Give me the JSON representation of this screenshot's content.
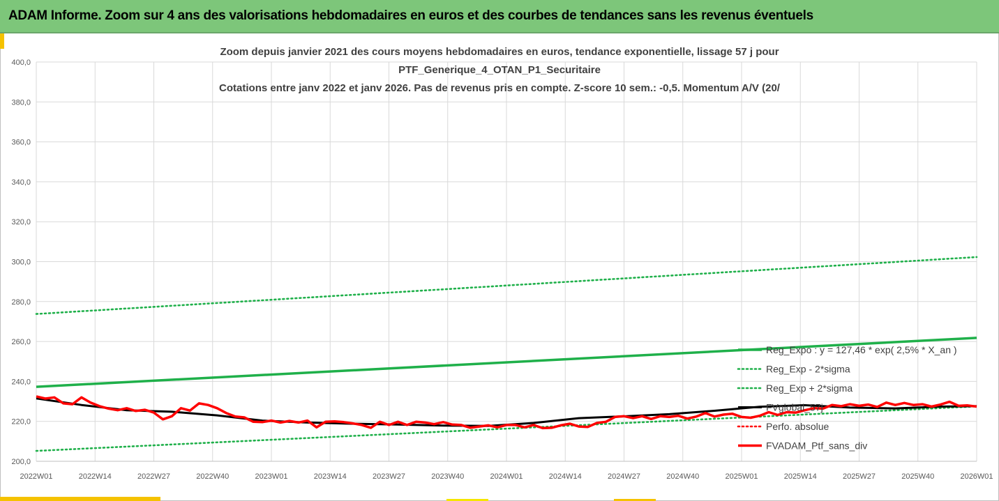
{
  "banner": {
    "title": "ADAM Informe. Zoom sur 4 ans des valorisations hebdomadaires en euros et des courbes de tendances sans les revenus éventuels"
  },
  "colors": {
    "banner": "#7dc67a",
    "trend": "#1fb04a",
    "bands": "#1fb04a",
    "portfolio": "#ff0000",
    "smoothing": "#000000",
    "accent": "#f5c200"
  },
  "chart_data": {
    "type": "line",
    "title_lines": [
      "Zoom depuis janvier 2021 des cours moyens hebdomadaires  en euros, tendance exponentielle, lissage 57 j pour",
      "PTF_Generique_4_OTAN_P1_Securitaire",
      "Cotations entre janv 2022 et janv 2026. Pas de revenus pris en compte. Z-score 10 sem.: -0,5. Momentum A/V (20/"
    ],
    "xlabel": "",
    "ylabel": "",
    "ylim": [
      200,
      400
    ],
    "yticks": [
      "200,0",
      "220,0",
      "240,0",
      "260,0",
      "280,0",
      "300,0",
      "320,0",
      "340,0",
      "360,0",
      "380,0",
      "400,0"
    ],
    "x_tick_labels": [
      "2022W01",
      "2022W14",
      "2022W27",
      "2022W40",
      "2023W01",
      "2023W14",
      "2023W27",
      "2023W40",
      "2024W01",
      "2024W14",
      "2024W27",
      "2024W40",
      "2025W01",
      "2025W14",
      "2025W27",
      "2025W40",
      "2026W01"
    ],
    "x_range_weeks": [
      0,
      208
    ],
    "grid": true,
    "legend_position": "bottom-right",
    "series": [
      {
        "name": "Reg_Expo : y = 127,46 * exp( 2,5% *  X_an )",
        "style": "solid-thick",
        "color": "#1fb04a",
        "x": [
          0,
          208
        ],
        "y": [
          237.3,
          261.8
        ]
      },
      {
        "name": "Reg_Exp - 2*sigma",
        "style": "dotted",
        "color": "#1fb04a",
        "x": [
          0,
          208
        ],
        "y": [
          205.2,
          227.5
        ]
      },
      {
        "name": "Reg_Exp + 2*sigma",
        "style": "dotted",
        "color": "#1fb04a",
        "x": [
          0,
          208
        ],
        "y": [
          273.8,
          302.3
        ]
      },
      {
        "name": "FVglobal_57j",
        "style": "solid",
        "color": "#000000",
        "x": [
          0,
          10,
          20,
          30,
          40,
          50,
          60,
          70,
          80,
          90,
          100,
          110,
          120,
          130,
          140,
          150,
          160,
          170,
          180,
          190,
          200,
          208
        ],
        "y": [
          231.5,
          228.2,
          225.6,
          224.8,
          223.0,
          220.4,
          219.4,
          218.8,
          218.4,
          217.9,
          217.7,
          219.2,
          221.6,
          222.5,
          223.6,
          225.3,
          227.3,
          228.1,
          226.9,
          226.5,
          227.4,
          227.6
        ]
      },
      {
        "name": "Perfo. absolue",
        "style": "dotted",
        "color": "#ff0000",
        "x": [],
        "y": []
      },
      {
        "name": "FVADAM_Ptf_sans_div",
        "style": "solid-thick",
        "color": "#ff0000",
        "x": [
          0,
          2,
          4,
          6,
          8,
          10,
          12,
          14,
          16,
          18,
          20,
          22,
          24,
          26,
          28,
          30,
          32,
          34,
          36,
          38,
          40,
          42,
          44,
          46,
          48,
          50,
          52,
          54,
          56,
          58,
          60,
          62,
          64,
          66,
          68,
          70,
          72,
          74,
          76,
          78,
          80,
          82,
          84,
          86,
          88,
          90,
          92,
          94,
          96,
          98,
          100,
          102,
          104,
          106,
          108,
          110,
          112,
          114,
          116,
          118,
          120,
          122,
          124,
          126,
          128,
          130,
          132,
          134,
          136,
          138,
          140,
          142,
          144,
          146,
          148,
          150,
          152,
          154,
          156,
          158,
          160,
          162,
          164,
          166,
          168,
          170,
          172,
          174,
          176,
          178,
          180,
          182,
          184,
          186,
          188,
          190,
          192,
          194,
          196,
          198,
          200,
          202,
          204,
          206,
          208
        ],
        "y": [
          232.5,
          231.4,
          232.0,
          229.0,
          228.6,
          232.0,
          229.4,
          227.6,
          226.4,
          225.6,
          226.6,
          225.2,
          225.8,
          224.4,
          221.0,
          222.6,
          226.6,
          225.4,
          229.0,
          228.2,
          226.6,
          224.2,
          222.4,
          222.0,
          219.8,
          219.6,
          220.4,
          219.4,
          220.2,
          219.4,
          220.4,
          217.0,
          219.8,
          220.0,
          219.6,
          219.0,
          218.2,
          216.8,
          219.8,
          218.2,
          219.8,
          218.2,
          219.8,
          219.4,
          218.6,
          219.6,
          218.4,
          218.2,
          216.8,
          217.4,
          218.0,
          217.0,
          218.2,
          218.2,
          217.0,
          218.2,
          216.6,
          216.8,
          218.0,
          218.8,
          217.4,
          217.2,
          219.2,
          219.8,
          222.2,
          222.6,
          221.6,
          222.6,
          221.2,
          222.6,
          222.2,
          222.8,
          221.4,
          222.4,
          224.2,
          222.4,
          223.4,
          223.8,
          222.2,
          221.8,
          222.8,
          224.6,
          223.2,
          224.6,
          224.4,
          225.6,
          226.6,
          226.4,
          228.2,
          227.6,
          228.6,
          227.8,
          228.4,
          227.2,
          229.4,
          228.2,
          229.2,
          228.2,
          228.6,
          227.4,
          228.4,
          229.8,
          227.8,
          228.0,
          227.4
        ]
      }
    ]
  }
}
